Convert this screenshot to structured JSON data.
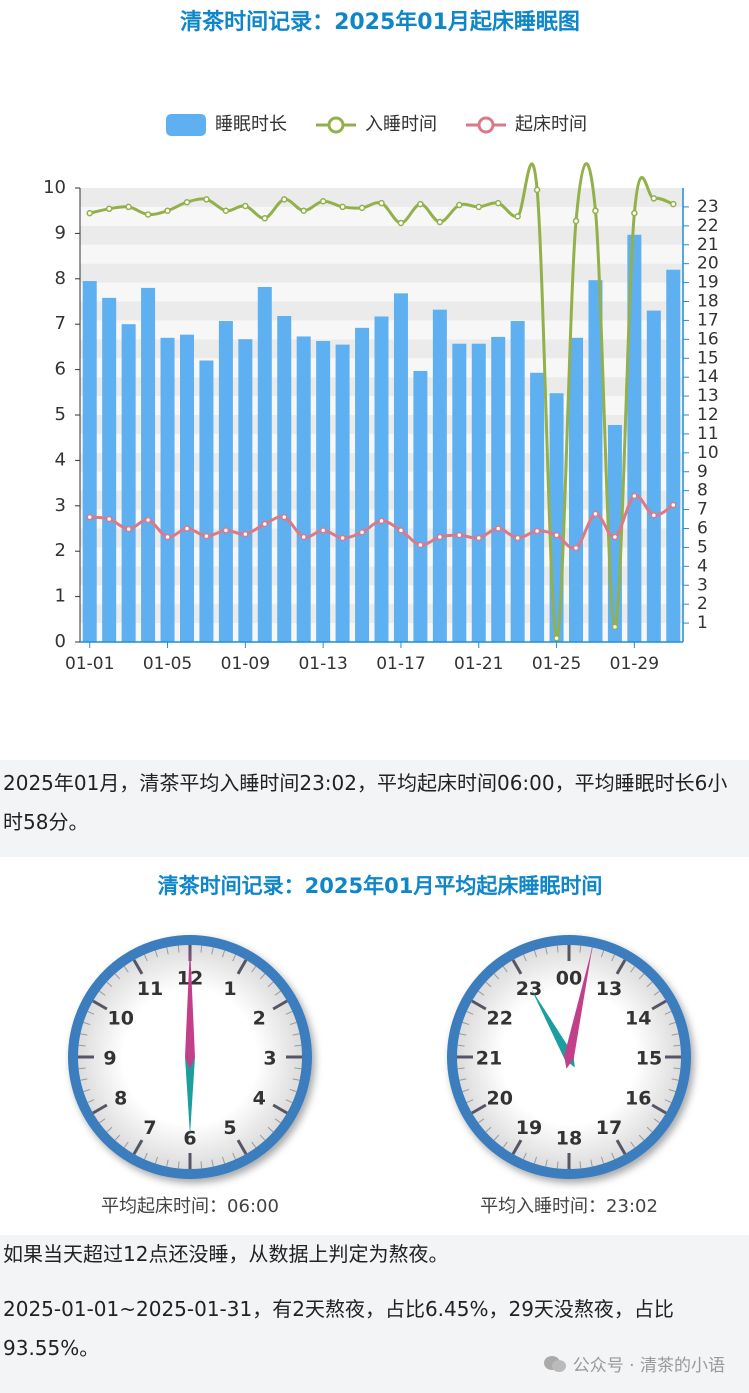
{
  "chart_data": {
    "type": "bar",
    "title": "清茶时间记录：2025年01月起床睡眠图",
    "categories": [
      "01-01",
      null,
      null,
      null,
      "01-05",
      null,
      null,
      null,
      "01-09",
      null,
      null,
      null,
      "01-13",
      null,
      null,
      null,
      "01-17",
      null,
      null,
      null,
      "01-21",
      null,
      null,
      null,
      "01-25",
      null,
      null,
      null,
      "01-29",
      null,
      null
    ],
    "series": [
      {
        "name": "睡眠时长",
        "type": "bar",
        "color": "#5fb0f0",
        "values": [
          7.95,
          7.58,
          7.0,
          7.8,
          6.7,
          6.77,
          6.2,
          7.07,
          6.67,
          7.82,
          7.18,
          6.73,
          6.63,
          6.55,
          6.92,
          7.17,
          7.68,
          5.97,
          7.32,
          6.57,
          6.57,
          6.72,
          7.07,
          5.93,
          5.48,
          6.7,
          7.97,
          4.78,
          8.97,
          7.3,
          8.2
        ]
      },
      {
        "name": "入睡时间",
        "type": "line",
        "axis": "y2",
        "color": "#93b04b",
        "values": [
          22.67,
          22.9,
          23.0,
          22.6,
          22.8,
          23.25,
          23.4,
          22.8,
          23.05,
          22.4,
          23.4,
          22.8,
          23.3,
          23.0,
          22.95,
          23.2,
          22.15,
          23.15,
          22.2,
          23.1,
          23.0,
          23.2,
          22.5,
          23.9,
          0.2,
          22.25,
          22.8,
          0.8,
          22.67,
          23.45,
          23.15
        ]
      },
      {
        "name": "起床时间",
        "type": "line",
        "axis": "y2",
        "color": "#d97a8a",
        "values": [
          6.6,
          6.5,
          5.97,
          6.45,
          5.55,
          6.0,
          5.6,
          5.9,
          5.7,
          6.24,
          6.6,
          5.55,
          5.9,
          5.5,
          5.8,
          6.4,
          5.9,
          5.13,
          5.55,
          5.65,
          5.5,
          6.0,
          5.5,
          5.87,
          5.65,
          4.97,
          6.77,
          5.55,
          7.72,
          6.7,
          7.24
        ]
      }
    ],
    "ylim": [
      0,
      10
    ],
    "yticks": [
      0,
      1,
      2,
      3,
      4,
      5,
      6,
      7,
      8,
      9,
      10
    ],
    "y2lim": [
      0,
      24
    ],
    "y2ticks": [
      1,
      2,
      3,
      4,
      5,
      6,
      7,
      8,
      9,
      10,
      11,
      12,
      13,
      14,
      15,
      16,
      17,
      18,
      19,
      20,
      21,
      22,
      23
    ]
  },
  "summary": "2025年01月，清茶平均入睡时间23:02，平均起床时间06:00，平均睡眠时长6小时58分。",
  "clock_panel": {
    "title": "清茶时间记录：2025年01月平均起床睡眠时间",
    "clocks": [
      {
        "numbers": [
          "12",
          "1",
          "2",
          "3",
          "4",
          "5",
          "6",
          "7",
          "8",
          "9",
          "10",
          "11"
        ],
        "hour": 6,
        "minute": 0,
        "caption": "平均起床时间：06:00"
      },
      {
        "numbers": [
          "00",
          "13",
          "14",
          "15",
          "16",
          "17",
          "18",
          "19",
          "20",
          "21",
          "22",
          "23"
        ],
        "hour": 23,
        "minute": 2,
        "caption": "平均入睡时间：23:02"
      }
    ]
  },
  "notes": [
    "如果当天超过12点还没睡，从数据上判定为熬夜。",
    "2025-01-01~2025-01-31，有2天熬夜，占比6.45%，29天没熬夜，占比93.55%。"
  ],
  "watermark": "公众号 · 清茶的小语"
}
